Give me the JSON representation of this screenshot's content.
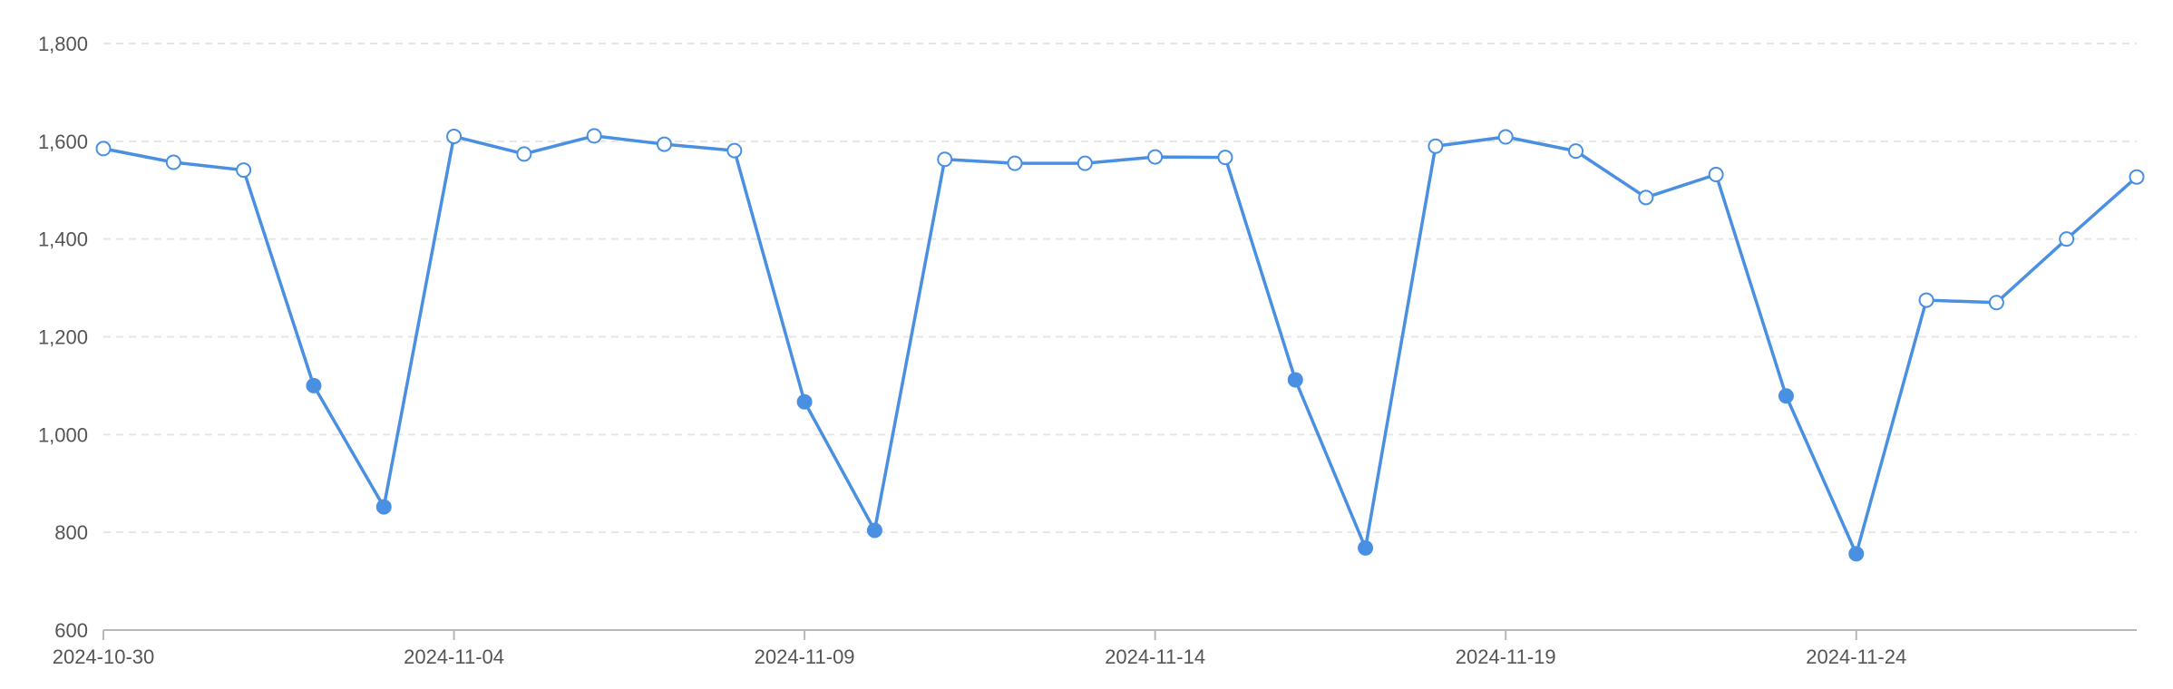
{
  "chart_data": {
    "type": "line",
    "title": "",
    "xlabel": "",
    "ylabel": "",
    "ylim": [
      600,
      1800
    ],
    "y_ticks": [
      600,
      800,
      1000,
      1200,
      1400,
      1600,
      1800
    ],
    "y_tick_labels": [
      "600",
      "800",
      "1,000",
      "1,200",
      "1,400",
      "1,600",
      "1,800"
    ],
    "x_tick_labels": [
      "2024-10-30",
      "2024-11-04",
      "2024-11-09",
      "2024-11-14",
      "2024-11-19",
      "2024-11-24"
    ],
    "grid": "horizontal dashed",
    "color": "#4a90e2",
    "series": [
      {
        "x": [
          "2024-10-30",
          "2024-10-31",
          "2024-11-01",
          "2024-11-02",
          "2024-11-03",
          "2024-11-04",
          "2024-11-05",
          "2024-11-06",
          "2024-11-07",
          "2024-11-08",
          "2024-11-09",
          "2024-11-10",
          "2024-11-11",
          "2024-11-12",
          "2024-11-13",
          "2024-11-14",
          "2024-11-15",
          "2024-11-16",
          "2024-11-17",
          "2024-11-18",
          "2024-11-19",
          "2024-11-20",
          "2024-11-21",
          "2024-11-22",
          "2024-11-23",
          "2024-11-24",
          "2024-11-25",
          "2024-11-26",
          "2024-11-27",
          "2024-11-28"
        ],
        "values": [
          1585,
          1557,
          1541,
          1100,
          852,
          1610,
          1574,
          1611,
          1594,
          1581,
          1067,
          804,
          1563,
          1555,
          1555,
          1568,
          1567,
          1112,
          768,
          1590,
          1609,
          1580,
          1485,
          1532,
          1079,
          756,
          1275,
          1270,
          1400,
          1527
        ],
        "filled_markers_on": [
          "2024-11-02",
          "2024-11-03",
          "2024-11-09",
          "2024-11-10",
          "2024-11-16",
          "2024-11-17",
          "2024-11-23",
          "2024-11-24"
        ]
      }
    ]
  }
}
